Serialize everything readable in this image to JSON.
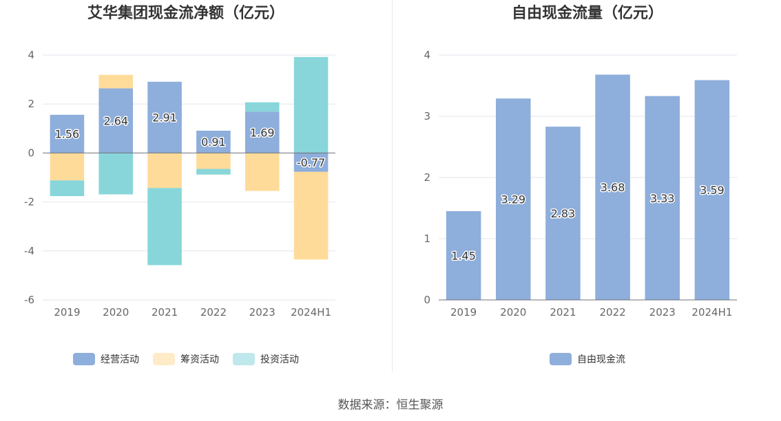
{
  "source_label": "数据来源：恒生聚源",
  "chart_data": [
    {
      "type": "bar",
      "stacked": true,
      "title": "艾华集团现金流净额（亿元）",
      "categories": [
        "2019",
        "2020",
        "2021",
        "2022",
        "2023",
        "2024H1"
      ],
      "ylim": [
        -6,
        4
      ],
      "yticks": [
        -6,
        -4,
        -2,
        0,
        2,
        4
      ],
      "grid": true,
      "legend_position": "bottom",
      "series": [
        {
          "name": "经营活动",
          "color": "#8eaedb",
          "values": [
            1.56,
            2.64,
            2.91,
            0.91,
            1.69,
            -0.77
          ],
          "show_labels": true
        },
        {
          "name": "筹资活动",
          "color": "#ffdb9a",
          "values": [
            -1.12,
            0.55,
            -1.43,
            -0.65,
            -1.55,
            -3.58
          ],
          "show_labels": false
        },
        {
          "name": "投资活动",
          "color": "#88d6da",
          "values": [
            -0.64,
            -1.69,
            -3.15,
            -0.23,
            0.38,
            3.92
          ],
          "show_labels": false
        }
      ]
    },
    {
      "type": "bar",
      "stacked": false,
      "title": "自由现金流量（亿元）",
      "categories": [
        "2019",
        "2020",
        "2021",
        "2022",
        "2023",
        "2024H1"
      ],
      "ylim": [
        0,
        4
      ],
      "yticks": [
        0,
        1,
        2,
        3,
        4
      ],
      "grid": true,
      "legend_position": "bottom",
      "series": [
        {
          "name": "自由现金流",
          "color": "#8eaedb",
          "values": [
            1.45,
            3.29,
            2.83,
            3.68,
            3.33,
            3.59
          ],
          "show_labels": true
        }
      ]
    }
  ]
}
